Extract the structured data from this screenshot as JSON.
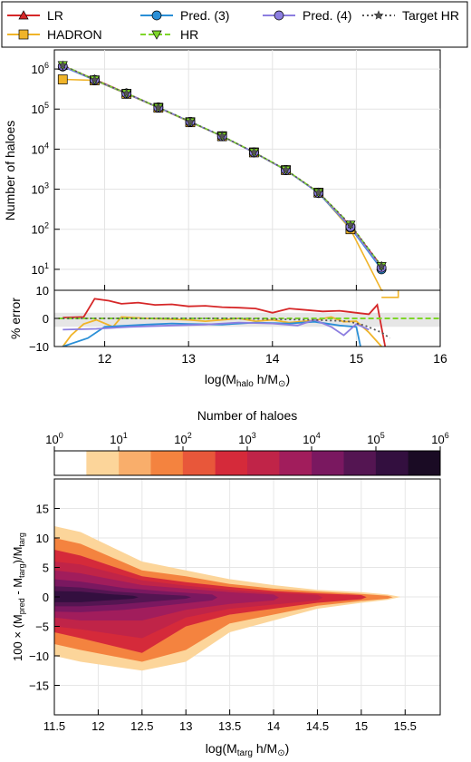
{
  "figure": {
    "legend": {
      "entries": [
        {
          "label": "LR",
          "color": "#d62728",
          "marker": "triangle-up",
          "line": "solid"
        },
        {
          "label": "HADRON",
          "color": "#f0b429",
          "marker": "square",
          "line": "solid"
        },
        {
          "label": "Pred. (3)",
          "color": "#2a8fd6",
          "marker": "circle",
          "line": "solid"
        },
        {
          "label": "HR",
          "color": "#7ed62a",
          "marker": "triangle-down",
          "line": "dashed"
        },
        {
          "label": "Pred. (4)",
          "color": "#8c7ee0",
          "marker": "circle",
          "line": "solid"
        },
        {
          "label": "Target HR",
          "color": "#555555",
          "marker": "star",
          "line": "dotted"
        }
      ]
    }
  },
  "chart_data": [
    {
      "type": "line",
      "panel": "top",
      "ylabel": "Number of haloes",
      "yscale": "log",
      "ylim": [
        3,
        3000000
      ],
      "ytick_labels": [
        "10^1",
        "10^2",
        "10^3",
        "10^4",
        "10^5",
        "10^6"
      ],
      "xlim": [
        11.4,
        16
      ],
      "grid": true,
      "x": [
        11.5,
        11.88,
        12.26,
        12.64,
        13.02,
        13.4,
        13.78,
        14.16,
        14.55,
        14.93,
        15.3
      ],
      "series": [
        {
          "name": "LR",
          "color": "#d62728",
          "values": [
            1200000,
            550000,
            250000,
            110000,
            48000,
            21000,
            8300,
            3000,
            820,
            120,
            12
          ]
        },
        {
          "name": "HADRON",
          "color": "#f0b429",
          "values": [
            550000,
            520000,
            240000,
            108000,
            47000,
            21000,
            8300,
            3000,
            820,
            100,
            2
          ]
        },
        {
          "name": "Pred. (3)",
          "color": "#2a8fd6",
          "values": [
            1150000,
            530000,
            245000,
            110000,
            48000,
            21000,
            8300,
            3000,
            800,
            110,
            10
          ]
        },
        {
          "name": "HR",
          "color": "#7ed62a",
          "values": [
            1250000,
            540000,
            248000,
            110000,
            48500,
            21200,
            8400,
            3050,
            830,
            130,
            12
          ]
        },
        {
          "name": "Pred. (4)",
          "color": "#8c7ee0",
          "values": [
            1180000,
            535000,
            246000,
            109000,
            48000,
            21000,
            8300,
            3000,
            810,
            115,
            11
          ]
        },
        {
          "name": "Target HR",
          "color": "#555555",
          "values": [
            1250000,
            540000,
            248000,
            110000,
            48500,
            21200,
            8400,
            3050,
            830,
            130,
            12
          ]
        }
      ]
    },
    {
      "type": "line",
      "panel": "middle",
      "ylabel": "% error",
      "xlabel": "log(M_halo h/M_☉)",
      "xlabel_main": "log(M",
      "xlabel_sub": "halo",
      "xlabel_tail": " h/M",
      "xlabel_sun": "⊙",
      "xlabel_close": ")",
      "ylim": [
        -10,
        10
      ],
      "yticks": [
        -10,
        0,
        10
      ],
      "xlim": [
        11.4,
        16
      ],
      "xticks": [
        12,
        13,
        14,
        15,
        16
      ],
      "band": [
        -3,
        2
      ],
      "series": [
        {
          "name": "LR",
          "color": "#d62728",
          "x": [
            11.5,
            11.75,
            11.88,
            12.05,
            12.2,
            12.4,
            12.6,
            12.8,
            13.0,
            13.2,
            13.4,
            13.6,
            13.8,
            14.0,
            14.2,
            14.4,
            14.6,
            14.8,
            15.0,
            15.15,
            15.25,
            15.35
          ],
          "values": [
            0.3,
            0.5,
            7,
            6.3,
            5.2,
            5.6,
            4.8,
            5,
            4.3,
            4.5,
            4,
            3.8,
            3.5,
            2,
            3.5,
            3,
            2.5,
            2.7,
            2,
            1.5,
            4.8,
            -11
          ]
        },
        {
          "name": "HADRON",
          "color": "#f0b429",
          "x": [
            11.5,
            11.6,
            11.75,
            11.9,
            12.1,
            12.2,
            12.5,
            12.8,
            13.0,
            13.2,
            13.45,
            13.6,
            13.8,
            14.0,
            14.2,
            14.5,
            14.7,
            14.85,
            15.0,
            15.15,
            15.3
          ],
          "values": [
            -10,
            -6,
            -2,
            -0.5,
            -3,
            0.5,
            0,
            -0.3,
            -0.5,
            -1,
            -0.4,
            0,
            -1,
            -0.5,
            -1.5,
            -0.7,
            0.5,
            -1.2,
            -1,
            -5,
            -10
          ]
        },
        {
          "name": "Pred. (3)",
          "color": "#2a8fd6",
          "x": [
            11.5,
            11.8,
            12.0,
            12.3,
            12.5,
            12.8,
            13.0,
            13.4,
            13.8,
            14.2,
            14.5,
            14.8,
            15.0,
            15.05
          ],
          "values": [
            -10,
            -7,
            -3,
            -2.5,
            -2.2,
            -1.8,
            -2,
            -2.2,
            -1.5,
            -1.8,
            -1.2,
            -2.5,
            -3,
            -10
          ]
        },
        {
          "name": "HR",
          "color": "#7ed62a",
          "x": [
            11.45,
            16
          ],
          "values": [
            0,
            0
          ],
          "dashed": true
        },
        {
          "name": "Pred. (4)",
          "color": "#8c7ee0",
          "x": [
            11.5,
            11.9,
            12.3,
            12.8,
            13.2,
            13.6,
            14.0,
            14.3,
            14.5,
            14.7,
            14.85,
            15.0,
            15.15
          ],
          "values": [
            -4,
            -3.7,
            -3,
            -2.5,
            -2.2,
            -1.5,
            -1.8,
            -2.5,
            -0.5,
            -3,
            -6,
            -2,
            -4
          ]
        },
        {
          "name": "Target HR",
          "color": "#555555",
          "x": [
            11.5,
            12.5,
            13.5,
            14.5,
            14.9,
            15.1,
            15.3,
            15.4
          ],
          "values": [
            0,
            0,
            0,
            -0.5,
            -1,
            -2.5,
            -5,
            -7
          ],
          "dotted": true
        }
      ]
    },
    {
      "type": "heatmap",
      "panel": "bottom",
      "colorbar_label": "Number of haloes",
      "colorbar_ticks": [
        {
          "base": "10",
          "exp": "0"
        },
        {
          "base": "10",
          "exp": "1"
        },
        {
          "base": "10",
          "exp": "2"
        },
        {
          "base": "10",
          "exp": "3"
        },
        {
          "base": "10",
          "exp": "4"
        },
        {
          "base": "10",
          "exp": "5"
        },
        {
          "base": "10",
          "exp": "6"
        }
      ],
      "colorbar_colors": [
        "#ffffff",
        "#fcd59a",
        "#f9ae6b",
        "#f4833f",
        "#e8573a",
        "#d52a3a",
        "#c02448",
        "#a11d5c",
        "#7a1860",
        "#541552",
        "#330f3f",
        "#1a0b24"
      ],
      "ylabel": "100 × (M_pred - M_targ)/M_targ",
      "xlabel": "log(M_targ h/M_☉)",
      "xlabel_main": "log(M",
      "xlabel_sub": "targ",
      "xlabel_tail": " h/M",
      "xlabel_sun": "⊙",
      "xlabel_close": ")",
      "xlim": [
        11.5,
        15.9
      ],
      "ylim": [
        -20,
        20
      ],
      "xticks": [
        11.5,
        12,
        12.5,
        13,
        13.5,
        14,
        14.5,
        15,
        15.5
      ],
      "xtick_labels": [
        "11.5",
        "12",
        "12.5",
        "13",
        "13.5",
        "14",
        "14.5",
        "15",
        "15.5"
      ],
      "yticks": [
        -15,
        -10,
        -5,
        0,
        5,
        10,
        15
      ],
      "grid": true,
      "contours": [
        {
          "level": 1,
          "x": [
            11.5,
            11.8,
            12.5,
            13.0,
            13.5,
            14.0,
            14.5,
            15.0,
            15.3,
            15.45
          ],
          "upper": [
            12,
            11,
            6,
            4.5,
            3,
            2,
            1.2,
            0.8,
            0.4,
            0
          ],
          "lower": [
            -10,
            -11,
            -12.5,
            -11,
            -6,
            -4,
            -2,
            -1,
            -0.5,
            0
          ]
        },
        {
          "level": 3,
          "x": [
            11.5,
            11.8,
            12.5,
            13.0,
            13.5,
            14.0,
            14.5,
            15.0,
            15.3
          ],
          "upper": [
            10,
            9,
            4.5,
            3.5,
            2.2,
            1.4,
            0.9,
            0.5,
            0.2
          ],
          "lower": [
            -8,
            -9,
            -11,
            -9,
            -4.5,
            -3,
            -1.5,
            -0.7,
            -0.3
          ]
        },
        {
          "level": 5,
          "x": [
            11.5,
            11.8,
            12.5,
            13.0,
            13.5,
            14.0,
            14.5,
            15.0
          ],
          "upper": [
            8,
            7,
            3.5,
            2.5,
            1.7,
            1,
            0.6,
            0.3
          ],
          "lower": [
            -6,
            -7,
            -9.5,
            -5,
            -3,
            -2,
            -1,
            -0.4
          ]
        },
        {
          "level": 6,
          "x": [
            11.5,
            11.8,
            12.5,
            13.0,
            13.5,
            14.0,
            14.5
          ],
          "upper": [
            6,
            5.5,
            2.8,
            1.9,
            1.2,
            0.7,
            0.35
          ],
          "lower": [
            -5,
            -5.5,
            -7,
            -3.5,
            -2,
            -1.3,
            -0.6
          ]
        },
        {
          "level": 7,
          "x": [
            11.5,
            11.8,
            12.5,
            13.0,
            13.5,
            14.0
          ],
          "upper": [
            4.5,
            4,
            2,
            1.4,
            0.8,
            0.4
          ],
          "lower": [
            -3.5,
            -4,
            -4,
            -2.2,
            -1.2,
            -0.6
          ]
        },
        {
          "level": 8,
          "x": [
            11.5,
            11.8,
            12.3,
            12.8,
            13.3
          ],
          "upper": [
            3,
            2.6,
            1.5,
            0.9,
            0.4
          ],
          "lower": [
            -2.5,
            -2.6,
            -2.2,
            -1.4,
            -0.6
          ]
        },
        {
          "level": 9,
          "x": [
            11.5,
            11.8,
            12.2,
            12.6,
            13.0
          ],
          "upper": [
            1.8,
            1.6,
            0.9,
            0.5,
            0.2
          ],
          "lower": [
            -1.6,
            -1.6,
            -1.3,
            -0.8,
            -0.3
          ]
        },
        {
          "level": 10,
          "x": [
            11.5,
            11.8,
            12.1,
            12.4
          ],
          "upper": [
            1,
            0.9,
            0.5,
            0.2
          ],
          "lower": [
            -0.9,
            -0.9,
            -0.6,
            -0.3
          ]
        }
      ]
    }
  ]
}
